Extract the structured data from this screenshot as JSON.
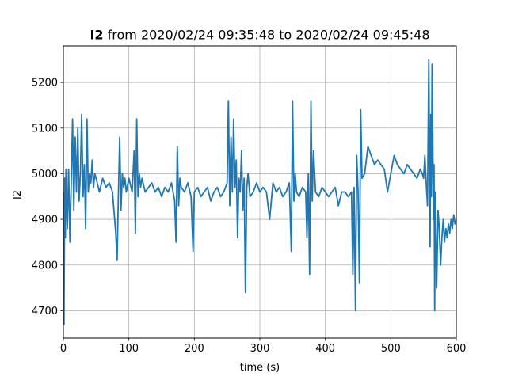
{
  "chart_data": {
    "type": "line",
    "title_bold": "I2",
    "title_rest": " from 2020/02/24 09:35:48 to 2020/02/24 09:45:48",
    "xlabel": "time (s)",
    "ylabel": "I2",
    "xlim": [
      0,
      600
    ],
    "ylim": [
      4640,
      5280
    ],
    "xticks": [
      0,
      100,
      200,
      300,
      400,
      500,
      600
    ],
    "yticks": [
      4700,
      4800,
      4900,
      5000,
      5100,
      5200
    ],
    "grid": true,
    "line_color": "#1f77b4",
    "series": [
      {
        "x": [
          0,
          1,
          2,
          3,
          4,
          5,
          6,
          8,
          10,
          12,
          14,
          16,
          18,
          20,
          22,
          24,
          26,
          28,
          30,
          32,
          34,
          36,
          38,
          40,
          42,
          44,
          46,
          48,
          50,
          55,
          60,
          65,
          70,
          75,
          80,
          82,
          84,
          86,
          88,
          90,
          92,
          94,
          96,
          100,
          105,
          108,
          110,
          112,
          114,
          116,
          118,
          120,
          125,
          130,
          135,
          140,
          145,
          150,
          155,
          160,
          165,
          170,
          172,
          174,
          176,
          178,
          180,
          185,
          190,
          195,
          198,
          200,
          205,
          210,
          215,
          220,
          225,
          230,
          235,
          240,
          245,
          250,
          252,
          254,
          256,
          258,
          260,
          262,
          264,
          266,
          268,
          270,
          272,
          274,
          276,
          278,
          280,
          282,
          285,
          290,
          295,
          300,
          305,
          310,
          315,
          320,
          325,
          330,
          335,
          340,
          345,
          348,
          350,
          352,
          354,
          356,
          360,
          365,
          370,
          372,
          374,
          376,
          378,
          380,
          382,
          385,
          390,
          395,
          400,
          405,
          410,
          415,
          420,
          425,
          430,
          435,
          440,
          442,
          444,
          446,
          448,
          450,
          452,
          454,
          456,
          460,
          465,
          470,
          475,
          480,
          485,
          490,
          495,
          500,
          505,
          510,
          515,
          520,
          525,
          530,
          535,
          540,
          545,
          548,
          550,
          552,
          554,
          556,
          558,
          560,
          561,
          562,
          563,
          564,
          565,
          566,
          567,
          568,
          569,
          570,
          572,
          574,
          576,
          578,
          580,
          582,
          584,
          586,
          588,
          590,
          592,
          594,
          596,
          598,
          600
        ],
        "values": [
          4960,
          4670,
          4990,
          4860,
          5010,
          4930,
          4880,
          5010,
          4850,
          4980,
          5120,
          4920,
          5080,
          4960,
          5100,
          4940,
          5000,
          5130,
          4950,
          5020,
          4880,
          5120,
          4960,
          5000,
          4980,
          5030,
          4970,
          5000,
          4990,
          4960,
          4990,
          4970,
          4980,
          4960,
          4870,
          4810,
          4950,
          5080,
          4920,
          5000,
          4970,
          4990,
          4960,
          4990,
          4960,
          5050,
          4870,
          5120,
          4950,
          5000,
          4970,
          4990,
          4960,
          4970,
          4980,
          4960,
          4970,
          4950,
          4970,
          4960,
          4980,
          4940,
          4850,
          5060,
          4930,
          4990,
          4970,
          4960,
          4980,
          4950,
          4830,
          4960,
          4970,
          4950,
          4960,
          4970,
          4940,
          4960,
          4970,
          4950,
          4960,
          4980,
          5160,
          4930,
          5080,
          4960,
          5120,
          4970,
          5030,
          4860,
          4990,
          4960,
          5050,
          4920,
          4990,
          4740,
          4970,
          5000,
          4950,
          4960,
          4980,
          4960,
          4970,
          4960,
          4900,
          4980,
          4960,
          4970,
          4950,
          4960,
          4980,
          4830,
          5160,
          4940,
          5000,
          4960,
          4950,
          4970,
          4960,
          4860,
          5000,
          4780,
          5160,
          4940,
          5050,
          4960,
          4950,
          4970,
          4960,
          4950,
          4960,
          4970,
          4930,
          4960,
          4960,
          4950,
          4960,
          4780,
          4970,
          4700,
          5040,
          4960,
          4760,
          5140,
          4990,
          5000,
          5060,
          5040,
          5020,
          5030,
          5020,
          5010,
          4960,
          5000,
          5040,
          5020,
          5010,
          5000,
          5020,
          5010,
          5000,
          4990,
          5010,
          5000,
          4990,
          5040,
          4980,
          4930,
          5250,
          4840,
          5130,
          4950,
          5240,
          5100,
          4900,
          5020,
          4700,
          4960,
          4840,
          4750,
          4920,
          4880,
          4800,
          4860,
          4900,
          4850,
          4880,
          4860,
          4890,
          4870,
          4900,
          4880,
          4910,
          4890,
          4900
        ]
      }
    ]
  }
}
